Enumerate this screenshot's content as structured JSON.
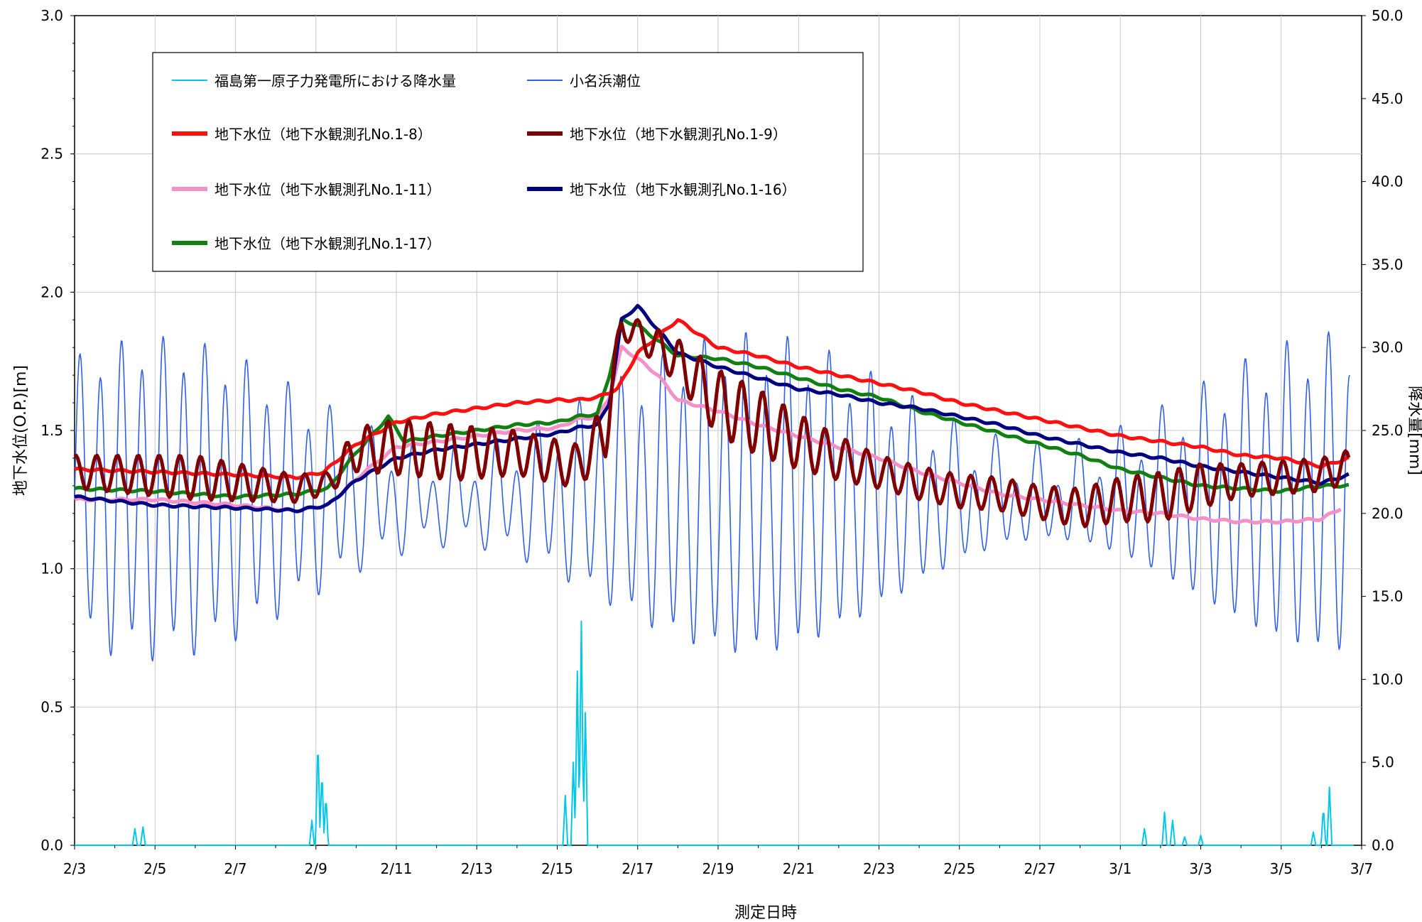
{
  "chart_data": {
    "type": "line",
    "xlabel": "測定日時",
    "ylabel_left": "地下水位(O.P.)[m]",
    "ylabel_right": "降水量[mm]",
    "x_ticks": [
      "2/3",
      "2/5",
      "2/7",
      "2/9",
      "2/11",
      "2/13",
      "2/15",
      "2/17",
      "2/19",
      "2/21",
      "2/23",
      "2/25",
      "2/27",
      "3/1",
      "3/3",
      "3/5",
      "3/7"
    ],
    "x_range_days": [
      0,
      32
    ],
    "ylim_left": [
      0,
      3.0
    ],
    "yticks_left": [
      "0.0",
      "0.5",
      "1.0",
      "1.5",
      "2.0",
      "2.5",
      "3.0"
    ],
    "ylim_right": [
      0,
      50
    ],
    "yticks_right": [
      "0.0",
      "5.0",
      "10.0",
      "15.0",
      "20.0",
      "25.0",
      "30.0",
      "35.0",
      "40.0",
      "45.0",
      "50.0"
    ],
    "grid": true,
    "legend_position": "top-left",
    "colors": {
      "precip": "#00C8E8",
      "tide": "#3060E8",
      "well_1_8": "#FF1010",
      "well_1_9": "#800000",
      "well_1_11": "#F590C8",
      "well_1_16": "#000080",
      "well_1_17": "#108010"
    },
    "tide_params": {
      "mean": 1.25,
      "amp_base": 0.33,
      "amp_spring": 0.2,
      "period_days": 0.5175
    },
    "series": [
      {
        "id": "precip",
        "name": "福島第一原子力発電所における降水量",
        "axis": "right",
        "peaks": [
          {
            "x": 1.5,
            "y": 1.0
          },
          {
            "x": 1.7,
            "y": 1.1
          },
          {
            "x": 5.9,
            "y": 1.5
          },
          {
            "x": 6.05,
            "y": 6.5
          },
          {
            "x": 6.15,
            "y": 4.5
          },
          {
            "x": 6.25,
            "y": 3.0
          },
          {
            "x": 12.2,
            "y": 3.0
          },
          {
            "x": 12.4,
            "y": 5.0
          },
          {
            "x": 12.5,
            "y": 10.5
          },
          {
            "x": 12.6,
            "y": 13.5
          },
          {
            "x": 12.7,
            "y": 8.0
          },
          {
            "x": 26.6,
            "y": 1.0
          },
          {
            "x": 27.1,
            "y": 2.0
          },
          {
            "x": 27.3,
            "y": 1.5
          },
          {
            "x": 27.6,
            "y": 0.5
          },
          {
            "x": 28.0,
            "y": 0.6
          },
          {
            "x": 30.8,
            "y": 0.8
          },
          {
            "x": 31.05,
            "y": 2.3
          },
          {
            "x": 31.2,
            "y": 3.5
          }
        ]
      },
      {
        "id": "tide",
        "name": "小名浜潮位",
        "axis": "left"
      },
      {
        "id": "well_1_8",
        "name": "地下水位（地下水観測孔No.1-8）",
        "axis": "left",
        "x": [
          0,
          2,
          4,
          5.5,
          6.2,
          7.0,
          8.0,
          9.0,
          10.0,
          11.0,
          12.0,
          12.5,
          13.0,
          13.5,
          14.0,
          15.0,
          16.0,
          17.0,
          18.0,
          19.0,
          20.0,
          21.0,
          22.0,
          23.0,
          24.0,
          25.0,
          26.0,
          27.0,
          28.0,
          29.0,
          30.0,
          31.0,
          31.7
        ],
        "y": [
          1.36,
          1.35,
          1.34,
          1.33,
          1.35,
          1.45,
          1.53,
          1.56,
          1.58,
          1.6,
          1.61,
          1.61,
          1.62,
          1.65,
          1.78,
          1.9,
          1.8,
          1.77,
          1.73,
          1.7,
          1.67,
          1.64,
          1.6,
          1.57,
          1.54,
          1.51,
          1.48,
          1.46,
          1.44,
          1.41,
          1.4,
          1.37,
          1.4
        ]
      },
      {
        "id": "well_1_9",
        "name": "地下水位（地下水観測孔No.1-9）",
        "axis": "left",
        "x": [
          0,
          3,
          5.5,
          6.3,
          7.0,
          8.0,
          9.5,
          11.0,
          12.5,
          13.2,
          13.6,
          14.0,
          15.0,
          16.0,
          17.0,
          18.0,
          19.0,
          20.0,
          21.0,
          22.0,
          23.0,
          24.0,
          25.0,
          26.0,
          27.0,
          28.0,
          29.0,
          30.0,
          31.0,
          31.7
        ],
        "y": [
          1.35,
          1.33,
          1.29,
          1.31,
          1.43,
          1.44,
          1.42,
          1.42,
          1.37,
          1.5,
          1.88,
          1.85,
          1.75,
          1.6,
          1.53,
          1.46,
          1.4,
          1.35,
          1.31,
          1.28,
          1.27,
          1.24,
          1.22,
          1.25,
          1.26,
          1.3,
          1.32,
          1.33,
          1.34,
          1.37
        ],
        "amp": [
          0.06,
          0.08,
          0.05,
          0.04,
          0.08,
          0.1,
          0.1,
          0.08,
          0.08,
          0.1,
          0.05,
          0.05,
          0.08,
          0.12,
          0.12,
          0.1,
          0.08,
          0.06,
          0.06,
          0.06,
          0.06,
          0.06,
          0.07,
          0.08,
          0.09,
          0.08,
          0.06,
          0.06,
          0.06,
          0.06
        ]
      },
      {
        "id": "well_1_11",
        "name": "地下水位（地下水観測孔No.1-11）",
        "axis": "left",
        "x": [
          0,
          2,
          4,
          5.5,
          6.3,
          7.2,
          8.0,
          9.0,
          10.0,
          11.0,
          12.0,
          12.5,
          13.0,
          13.3,
          13.6,
          14.0,
          14.5,
          15.0,
          16.0,
          17.0,
          18.0,
          19.0,
          20.0,
          21.0,
          22.0,
          23.0,
          24.0,
          25.0,
          26.0,
          27.0,
          28.0,
          29.0,
          30.0,
          31.0,
          31.5
        ],
        "y": [
          1.25,
          1.25,
          1.23,
          1.21,
          1.23,
          1.35,
          1.44,
          1.46,
          1.48,
          1.5,
          1.51,
          1.54,
          1.55,
          1.62,
          1.8,
          1.76,
          1.7,
          1.61,
          1.57,
          1.52,
          1.48,
          1.44,
          1.4,
          1.35,
          1.31,
          1.27,
          1.25,
          1.23,
          1.21,
          1.2,
          1.18,
          1.17,
          1.17,
          1.18,
          1.22
        ]
      },
      {
        "id": "well_1_16",
        "name": "地下水位（地下水観測孔No.1-16）",
        "axis": "left",
        "x": [
          0,
          2,
          4,
          5.5,
          6.3,
          7.0,
          8.0,
          9.0,
          10.0,
          11.0,
          12.0,
          12.5,
          13.0,
          13.3,
          13.6,
          14.0,
          15.0,
          16.0,
          17.0,
          18.0,
          19.0,
          20.0,
          21.0,
          22.0,
          23.0,
          24.0,
          25.0,
          26.0,
          27.0,
          28.0,
          29.0,
          30.0,
          31.0,
          31.7
        ],
        "y": [
          1.26,
          1.23,
          1.22,
          1.21,
          1.23,
          1.32,
          1.4,
          1.43,
          1.45,
          1.47,
          1.49,
          1.51,
          1.52,
          1.6,
          1.9,
          1.95,
          1.78,
          1.73,
          1.69,
          1.65,
          1.63,
          1.6,
          1.58,
          1.55,
          1.52,
          1.48,
          1.45,
          1.42,
          1.4,
          1.37,
          1.35,
          1.33,
          1.31,
          1.34
        ]
      },
      {
        "id": "well_1_17",
        "name": "地下水位（地下水観測孔No.1-17）",
        "axis": "left",
        "x": [
          0,
          2,
          4,
          5.5,
          6.3,
          7.0,
          7.5,
          7.8,
          8.2,
          9.0,
          10.0,
          11.0,
          12.0,
          12.5,
          13.0,
          13.3,
          13.6,
          14.0,
          15.0,
          16.0,
          17.0,
          18.0,
          19.0,
          20.0,
          21.0,
          22.0,
          23.0,
          24.0,
          25.0,
          26.0,
          27.0,
          28.0,
          29.0,
          30.0,
          31.0,
          31.7
        ],
        "y": [
          1.29,
          1.28,
          1.26,
          1.27,
          1.29,
          1.42,
          1.5,
          1.55,
          1.46,
          1.48,
          1.5,
          1.52,
          1.53,
          1.55,
          1.56,
          1.7,
          1.9,
          1.88,
          1.77,
          1.76,
          1.73,
          1.69,
          1.65,
          1.62,
          1.57,
          1.53,
          1.49,
          1.45,
          1.41,
          1.36,
          1.33,
          1.3,
          1.29,
          1.28,
          1.3,
          1.3
        ]
      }
    ]
  }
}
